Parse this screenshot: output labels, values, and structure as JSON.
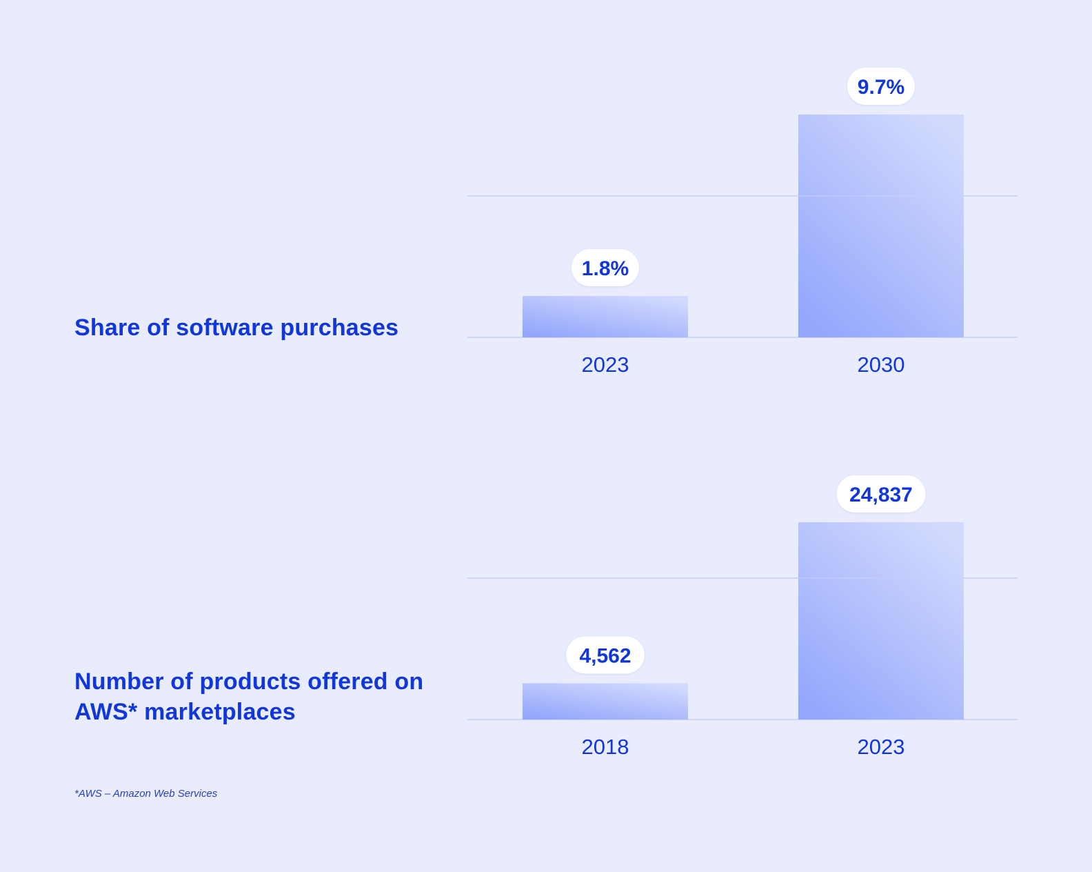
{
  "colors": {
    "background": "#e8ecfc",
    "text": "#1136d9",
    "gridline": "#c5cff5",
    "bar_top": "#d3dbfd",
    "bar_bottom": "#93a6fc",
    "label_pill": "#ffffff"
  },
  "chart_data": [
    {
      "type": "bar",
      "title": "Share of software purchases",
      "categories": [
        "2023",
        "2030"
      ],
      "values": [
        1.8,
        9.7
      ],
      "data_labels": [
        "1.8%",
        "9.7%"
      ],
      "xlabel": "",
      "ylabel": "",
      "ylim": [
        0,
        9.7
      ],
      "grid": true
    },
    {
      "type": "bar",
      "title": "Number of products offered on AWS* marketplaces",
      "categories": [
        "2018",
        "2023"
      ],
      "values": [
        4562,
        24837
      ],
      "data_labels": [
        "4,562",
        "24,837"
      ],
      "xlabel": "",
      "ylabel": "",
      "ylim": [
        0,
        24837
      ],
      "grid": true
    }
  ],
  "footnote": "*AWS – Amazon Web Services"
}
